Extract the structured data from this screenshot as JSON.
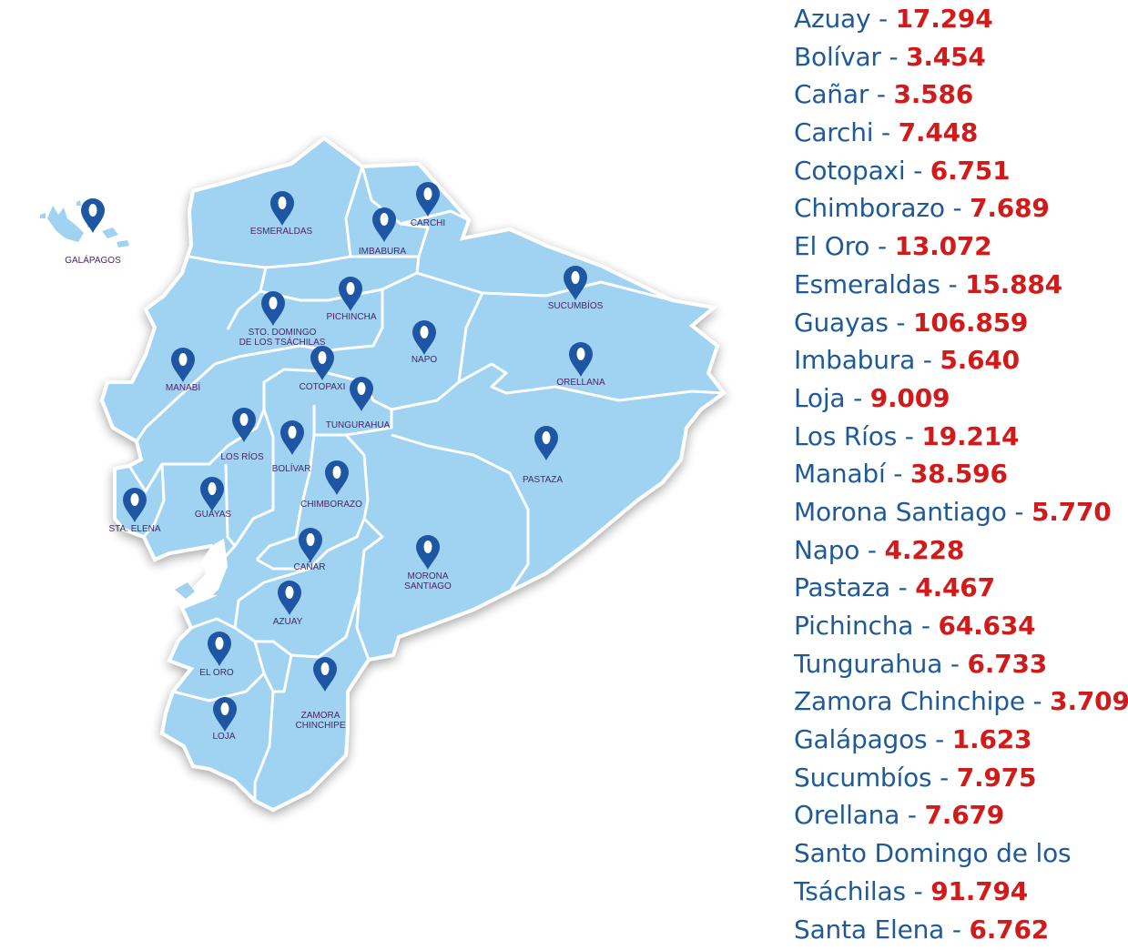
{
  "map": {
    "colors": {
      "land": "#9fd3f1",
      "border": "#ffffff",
      "pin": "#1f56a3",
      "pin_dot": "#ffffff",
      "label": "#4a2569",
      "shadow": "#cfcfcf"
    },
    "provinces": [
      {
        "id": "galapagos",
        "label": "GALÁPAGOS",
        "icon": "map-pin-icon"
      },
      {
        "id": "esmeraldas",
        "label": "ESMERALDAS",
        "icon": "map-pin-icon"
      },
      {
        "id": "imbabura",
        "label": "IMBABURA",
        "icon": "map-pin-icon"
      },
      {
        "id": "carchi",
        "label": "CARCHI",
        "icon": "map-pin-icon"
      },
      {
        "id": "sucumbios",
        "label": "SUCUMBÍOS",
        "icon": "map-pin-icon"
      },
      {
        "id": "pichincha",
        "label": "PICHINCHA",
        "icon": "map-pin-icon"
      },
      {
        "id": "santo-domingo",
        "label": "STO. DOMINGO",
        "label2": "DE LOS TSÁCHILAS",
        "icon": "map-pin-icon"
      },
      {
        "id": "napo",
        "label": "NAPO",
        "icon": "map-pin-icon"
      },
      {
        "id": "orellana",
        "label": "ORELLANA",
        "icon": "map-pin-icon"
      },
      {
        "id": "manabi",
        "label": "MANABÍ",
        "icon": "map-pin-icon"
      },
      {
        "id": "cotopaxi",
        "label": "COTOPAXI",
        "icon": "map-pin-icon"
      },
      {
        "id": "tungurahua",
        "label": "TUNGURAHUA",
        "icon": "map-pin-icon"
      },
      {
        "id": "los-rios",
        "label": "LOS RÍOS",
        "icon": "map-pin-icon"
      },
      {
        "id": "bolivar",
        "label": "BOLÍVAR",
        "icon": "map-pin-icon"
      },
      {
        "id": "pastaza",
        "label": "PASTAZA",
        "icon": "map-pin-icon"
      },
      {
        "id": "chimborazo",
        "label": "CHIMBORAZO",
        "icon": "map-pin-icon"
      },
      {
        "id": "santa-elena",
        "label": "STA. ELENA",
        "icon": "map-pin-icon"
      },
      {
        "id": "guayas",
        "label": "GUAYAS",
        "icon": "map-pin-icon"
      },
      {
        "id": "canar",
        "label": "CAÑAR",
        "icon": "map-pin-icon"
      },
      {
        "id": "morona-santiago",
        "label": "MORONA",
        "label2": "SANTIAGO",
        "icon": "map-pin-icon"
      },
      {
        "id": "azuay",
        "label": "AZUAY",
        "icon": "map-pin-icon"
      },
      {
        "id": "el-oro",
        "label": "EL ORO",
        "icon": "map-pin-icon"
      },
      {
        "id": "zamora-chinchipe",
        "label": "ZAMORA",
        "label2": "CHINCHIPE",
        "icon": "map-pin-icon"
      },
      {
        "id": "loja",
        "label": "LOJA",
        "icon": "map-pin-icon"
      }
    ]
  },
  "stats": [
    {
      "name": "Azuay",
      "sep": " - ",
      "value": "17.294"
    },
    {
      "name": "Bolívar",
      "sep": " - ",
      "value": "3.454"
    },
    {
      "name": "Cañar",
      "sep": " - ",
      "value": "3.586"
    },
    {
      "name": "Carchi",
      "sep": " - ",
      "value": "7.448"
    },
    {
      "name": "Cotopaxi",
      "sep": " - ",
      "value": "6.751"
    },
    {
      "name": "Chimborazo",
      "sep": " - ",
      "value": "7.689"
    },
    {
      "name": "El Oro",
      "sep": " - ",
      "value": "13.072"
    },
    {
      "name": "Esmeraldas",
      "sep": " - ",
      "value": "15.884"
    },
    {
      "name": "Guayas",
      "sep": " - ",
      "value": "106.859"
    },
    {
      "name": "Imbabura",
      "sep": " - ",
      "value": "5.640"
    },
    {
      "name": "Loja",
      "sep": " - ",
      "value": "9.009"
    },
    {
      "name": "Los Ríos",
      "sep": " - ",
      "value": "19.214"
    },
    {
      "name": "Manabí",
      "sep": " - ",
      "value": "38.596"
    },
    {
      "name": "Morona Santiago",
      "sep": " - ",
      "value": "5.770"
    },
    {
      "name": "Napo",
      "sep": " - ",
      "value": "4.228"
    },
    {
      "name": "Pastaza",
      "sep": " - ",
      "value": "4.467"
    },
    {
      "name": "Pichincha",
      "sep": " - ",
      "value": "64.634"
    },
    {
      "name": "Tungurahua",
      "sep": " - ",
      "value": "6.733"
    },
    {
      "name": "Zamora Chinchipe",
      "sep": " - ",
      "value": "3.709"
    },
    {
      "name": "Galápagos",
      "sep": " - ",
      "value": "1.623"
    },
    {
      "name": "Sucumbíos",
      "sep": " - ",
      "value": "7.975"
    },
    {
      "name": "Orellana",
      "sep": " - ",
      "value": "7.679"
    },
    {
      "name": "Santo Domingo de los",
      "sep": "",
      "value": ""
    },
    {
      "name": "Tsáchilas",
      "sep": " - ",
      "value": "91.794"
    },
    {
      "name": "Santa Elena",
      "sep": " - ",
      "value": "6.762"
    }
  ]
}
